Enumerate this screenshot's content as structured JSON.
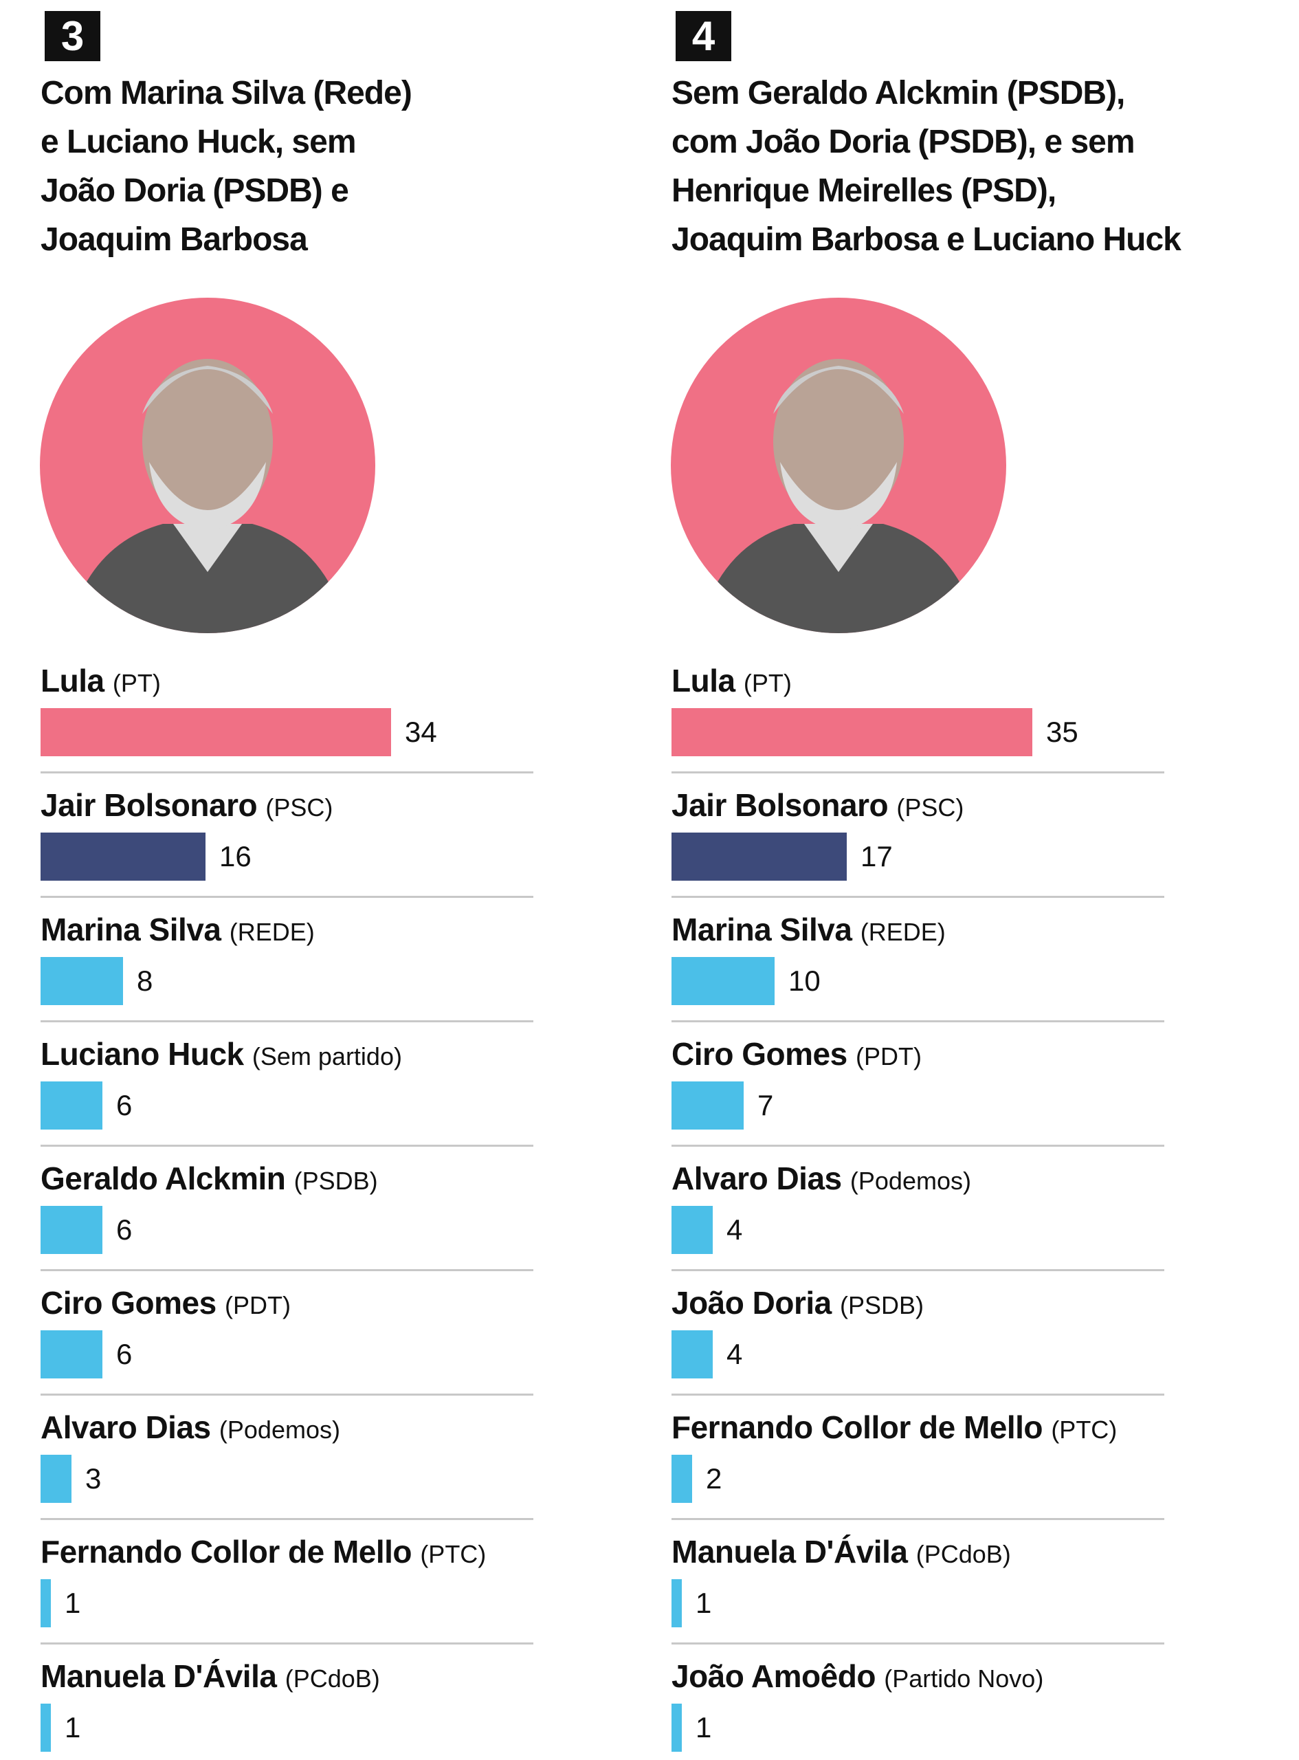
{
  "chart_data": [
    {
      "type": "bar",
      "number": "3",
      "title": [
        "Com Marina Silva (Rede)",
        "e Luciano Huck, sem",
        "João Doria (PSDB) e",
        "Joaquim Barbosa"
      ],
      "categories": [
        "Lula",
        "Jair Bolsonaro",
        "Marina Silva",
        "Luciano Huck",
        "Geraldo Alckmin",
        "Ciro Gomes",
        "Alvaro Dias",
        "Fernando Collor de Mello",
        "Manuela D'Ávila"
      ],
      "parties": [
        "(PT)",
        "(PSC)",
        "(REDE)",
        "(Sem partido)",
        "(PSDB)",
        "(PDT)",
        "(Podemos)",
        "(PTC)",
        "(PCdoB)"
      ],
      "values": [
        34,
        16,
        8,
        6,
        6,
        6,
        3,
        1,
        1
      ],
      "colors": [
        "#f07085",
        "#3d4a7a",
        "#4bbfe8",
        "#4bbfe8",
        "#4bbfe8",
        "#4bbfe8",
        "#4bbfe8",
        "#4bbfe8",
        "#4bbfe8"
      ]
    },
    {
      "type": "bar",
      "number": "4",
      "title": [
        "Sem Geraldo Alckmin (PSDB),",
        "com João Doria (PSDB), e sem",
        "Henrique Meirelles (PSD),",
        "Joaquim Barbosa e Luciano Huck"
      ],
      "categories": [
        "Lula",
        "Jair Bolsonaro",
        "Marina Silva",
        "Ciro Gomes",
        "Alvaro Dias",
        "João Doria",
        "Fernando Collor de Mello",
        "Manuela D'Ávila",
        "João Amoêdo"
      ],
      "parties": [
        "(PT)",
        "(PSC)",
        "(REDE)",
        "(PDT)",
        "(Podemos)",
        "(PSDB)",
        "(PTC)",
        "(PCdoB)",
        "(Partido Novo)"
      ],
      "values": [
        35,
        17,
        10,
        7,
        4,
        4,
        2,
        1,
        1
      ],
      "colors": [
        "#f07085",
        "#3d4a7a",
        "#4bbfe8",
        "#4bbfe8",
        "#4bbfe8",
        "#4bbfe8",
        "#4bbfe8",
        "#4bbfe8",
        "#4bbfe8"
      ]
    }
  ]
}
